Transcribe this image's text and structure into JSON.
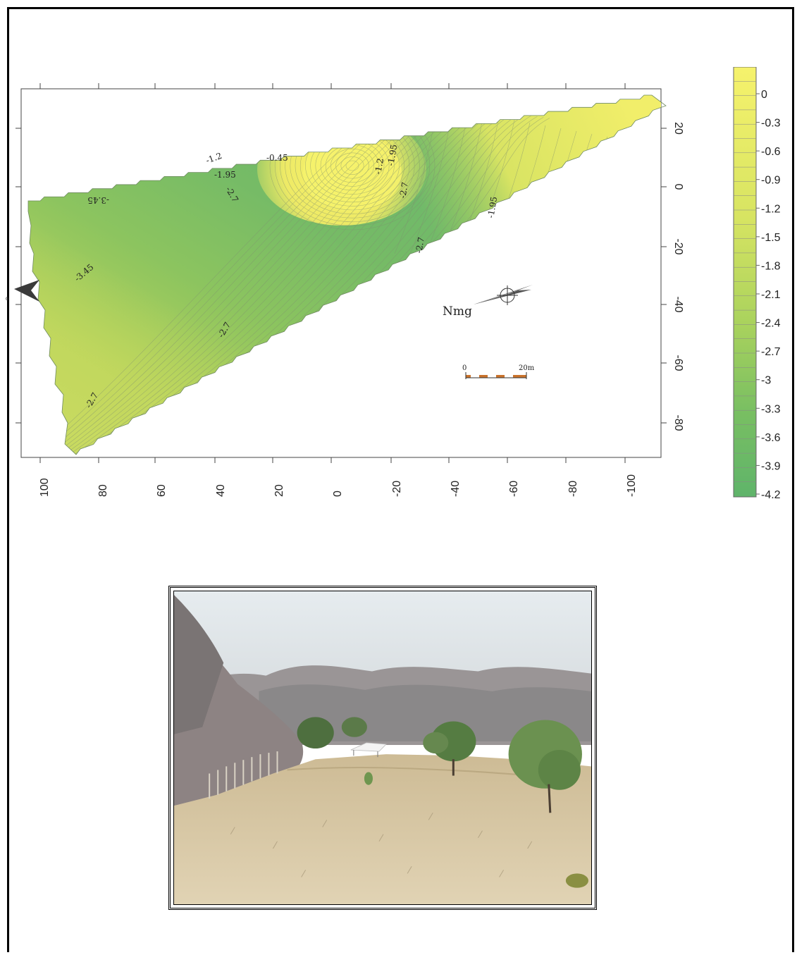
{
  "map": {
    "x_axis": {
      "ticks": [
        "100",
        "80",
        "60",
        "40",
        "20",
        "0",
        "-20",
        "-40",
        "-60",
        "-80",
        "-100"
      ],
      "values": [
        100,
        80,
        60,
        40,
        20,
        0,
        -20,
        -40,
        -60,
        -80,
        -100
      ]
    },
    "y_axis": {
      "ticks": [
        "20",
        "0",
        "-20",
        "-40",
        "-60",
        "-80"
      ],
      "values": [
        20,
        0,
        -20,
        -40,
        -60,
        -80
      ]
    },
    "contour_labels": [
      {
        "text": "-1.2",
        "value": -1.2
      },
      {
        "text": "-0.45",
        "value": -0.45
      },
      {
        "text": "-1.95",
        "value": -1.95
      },
      {
        "text": "-2.7",
        "value": -2.7
      },
      {
        "text": "-3.45",
        "value": -3.45
      },
      {
        "text": "-1.2",
        "value": -1.2
      },
      {
        "text": "-1.95",
        "value": -1.95
      },
      {
        "text": "-2.7",
        "value": -2.7
      },
      {
        "text": "-1.95",
        "value": -1.95
      },
      {
        "text": "-2.7",
        "value": -2.7
      },
      {
        "text": "-3.45",
        "value": -3.45
      },
      {
        "text": "-2.7",
        "value": -2.7
      },
      {
        "text": "-2.7",
        "value": -2.7
      }
    ],
    "north_label": "Nmg",
    "scale_bar": {
      "start": "0",
      "end": "20m"
    },
    "colors": {
      "high": "#f3f06a",
      "mid": "#b8d458",
      "low": "#5fb46a",
      "contour": "#7f8f70",
      "axis": "#444444"
    }
  },
  "legend": {
    "labels": [
      "0",
      "-0.3",
      "-0.6",
      "-0.9",
      "-1.2",
      "-1.5",
      "-1.8",
      "-2.1",
      "-2.4",
      "-2.7",
      "-3",
      "-3.3",
      "-3.6",
      "-3.9",
      "-4.2"
    ],
    "values": [
      0,
      -0.3,
      -0.6,
      -0.9,
      -1.2,
      -1.5,
      -1.8,
      -2.1,
      -2.4,
      -2.7,
      -3,
      -3.3,
      -3.6,
      -3.9,
      -4.2
    ]
  },
  "photo": {
    "scene": "site-landscape-with-trees-and-tent",
    "colors": {
      "sky": "#e8ebec",
      "trees": "#8f8a8a",
      "ground": "#d9c8a4",
      "shrub": "#5d8d4a"
    }
  }
}
